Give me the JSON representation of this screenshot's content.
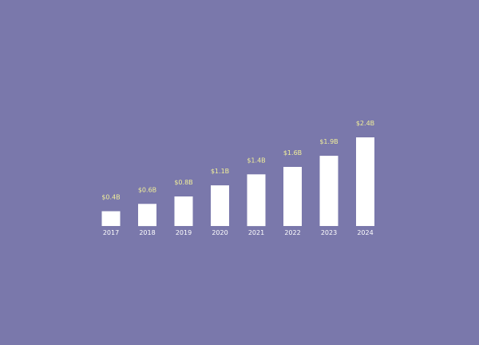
{
  "colors": {
    "background": "#7a78ab",
    "bar": "#ffffff",
    "value_label": "#f1ef9a",
    "tick_label": "#ffffff"
  },
  "chart_data": {
    "type": "bar",
    "title": "",
    "xlabel": "",
    "ylabel": "",
    "categories": [
      "2017",
      "2018",
      "2019",
      "2020",
      "2021",
      "2022",
      "2023",
      "2024"
    ],
    "values": [
      0.4,
      0.6,
      0.8,
      1.1,
      1.4,
      1.6,
      1.9,
      2.4
    ],
    "data_labels": [
      "$0.4B",
      "$0.6B",
      "$0.8B",
      "$1.1B",
      "$1.4B",
      "$1.6B",
      "$1.9B",
      "$2.4B"
    ],
    "ylim": [
      0,
      2.4
    ],
    "grid": false,
    "legend": "none"
  }
}
